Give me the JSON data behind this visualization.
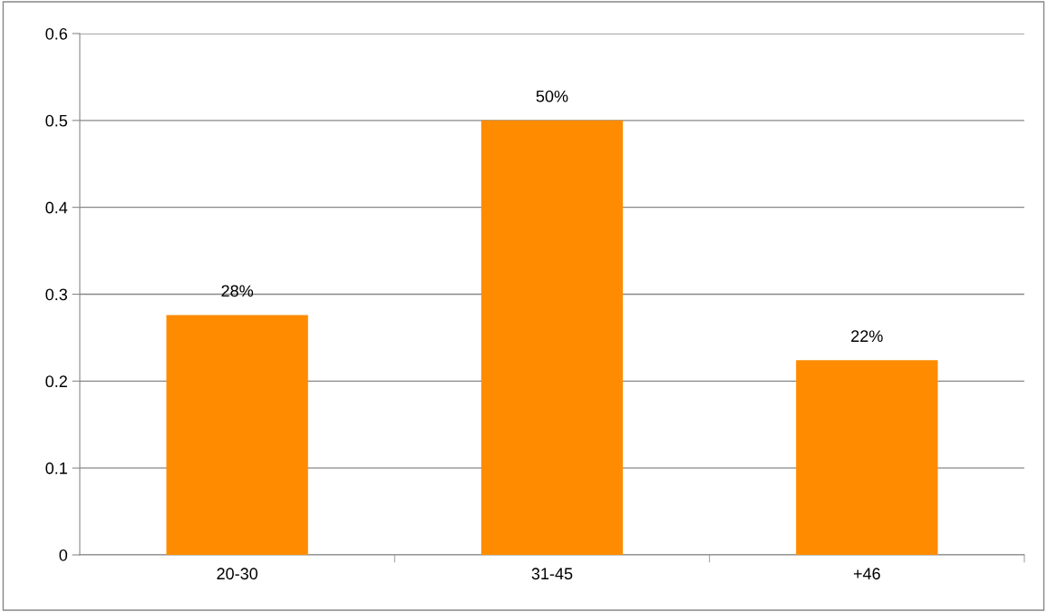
{
  "chart_data": {
    "type": "bar",
    "categories": [
      "20-30",
      "31-45",
      "+46"
    ],
    "values": [
      0.276,
      0.5,
      0.224
    ],
    "value_labels": [
      "28%",
      "50%",
      "22%"
    ],
    "color": "#ff8c00",
    "ylim": [
      0,
      0.6
    ],
    "yticks": [
      0,
      0.1,
      0.2,
      0.3,
      0.4,
      0.5,
      0.6
    ],
    "grid": "y",
    "legend": false
  }
}
